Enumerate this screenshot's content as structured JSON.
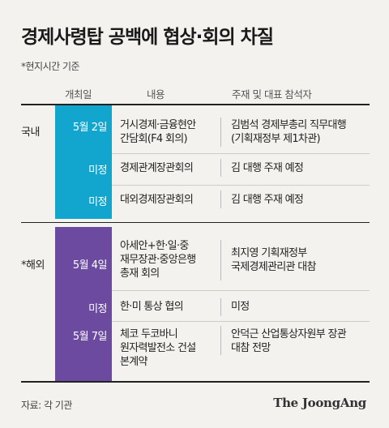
{
  "title": "경제사령탑 공백에 협상·회의 차질",
  "note": "*현지시간 기준",
  "headers": {
    "date": "개최일",
    "content": "내용",
    "host": "주재 및 대표 참석자"
  },
  "domestic": {
    "label": "국내",
    "rows": [
      {
        "date": "5월 2일",
        "content": [
          "거시경제·금융현안",
          "간담회(F4 회의)"
        ],
        "host": [
          "김범석 경제부총리 직무대행",
          "(기획재정부 제1차관)"
        ]
      },
      {
        "date": "미정",
        "content": [
          "경제관계장관회의"
        ],
        "host": [
          "김 대행 주재 예정"
        ]
      },
      {
        "date": "미정",
        "content": [
          "대외경제장관회의"
        ],
        "host": [
          "김 대행 주재 예정"
        ]
      }
    ]
  },
  "overseas": {
    "label": "*해외",
    "rows": [
      {
        "date": "5월 4일",
        "content": [
          "아세안+한·일·중",
          "재무장관·중앙은행",
          "총재 회의"
        ],
        "host": [
          "최지영 기획재정부",
          "국제경제관리관 대참"
        ]
      },
      {
        "date": "미정",
        "content": [
          "한·미 통상 협의"
        ],
        "host": [
          "미정"
        ]
      },
      {
        "date": "5월 7일",
        "content": [
          "체코 두코바니",
          "원자력발전소 건설",
          "본계약"
        ],
        "host": [
          "안덕근 산업통상자원부 장관",
          "대참 전망"
        ]
      }
    ]
  },
  "source": "자료: 각 기관",
  "logo": "The JoongAng",
  "colors": {
    "domestic": "#12a6cf",
    "overseas": "#6b4aa0",
    "background": "#f4f2ee"
  }
}
